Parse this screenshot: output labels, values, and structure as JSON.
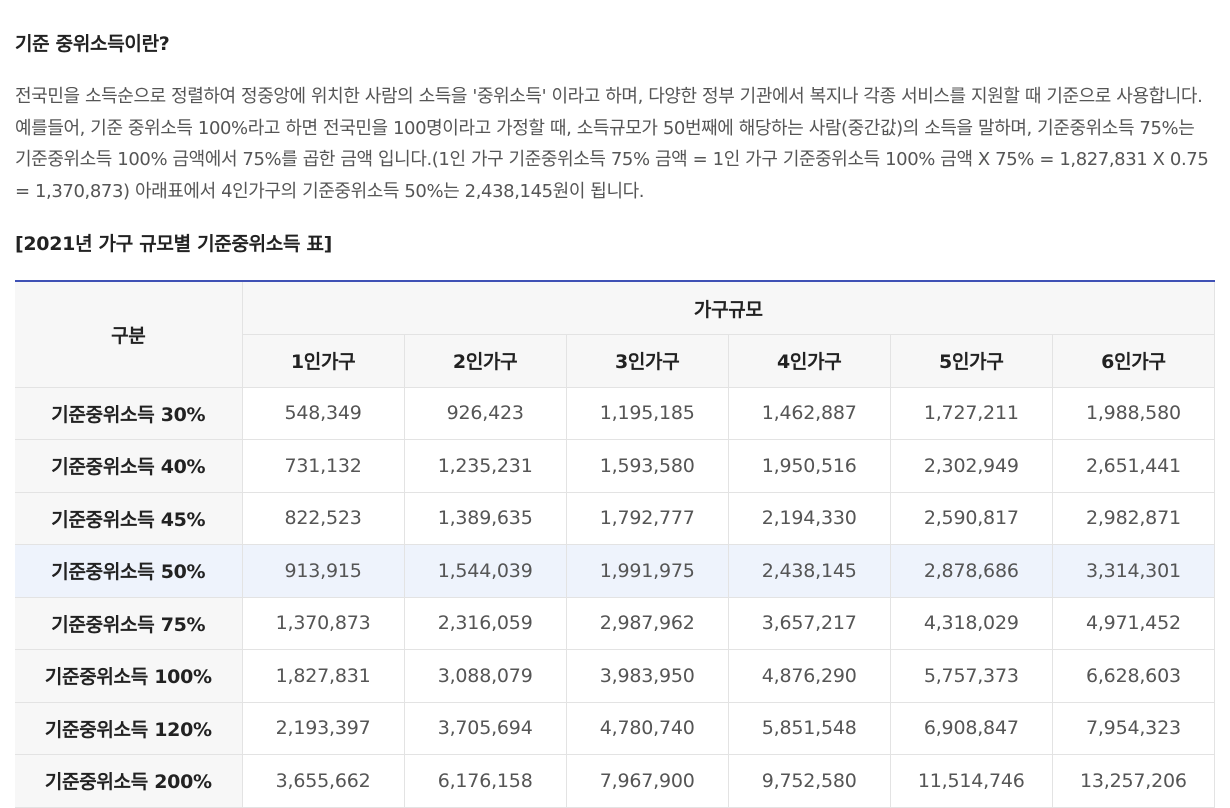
{
  "heading": "기준 중위소득이란?",
  "paragraph": "전국민을 소득순으로 정렬하여 정중앙에 위치한 사람의 소득을 '중위소득' 이라고 하며, 다양한 정부 기관에서 복지나 각종 서비스를 지원할 때 기준으로 사용합니다. 예를들어, 기준 중위소득 100%라고 하면 전국민을 100명이라고 가정할 때, 소득규모가 50번째에 해당하는 사람(중간값)의 소득을 말하며, 기준중위소득 75%는 기준중위소득 100% 금액에서 75%를 곱한 금액 입니다.(1인 가구 기준중위소득 75% 금액 = 1인 가구 기준중위소득 100% 금액 X 75% = 1,827,831 X 0.75 = 1,370,873) 아래표에서 4인가구의 기준중위소득 50%는 2,438,145원이 됩니다.",
  "table_title": "[2021년 가구 규모별 기준중위소득 표]",
  "table": {
    "corner_label": "구분",
    "group_label": "가구규모",
    "columns": [
      "1인가구",
      "2인가구",
      "3인가구",
      "4인가구",
      "5인가구",
      "6인가구"
    ],
    "highlight_color": "#eef3fc",
    "accent_color": "#3f51b5",
    "rows": [
      {
        "label": "기준중위소득 30%",
        "values": [
          "548,349",
          "926,423",
          "1,195,185",
          "1,462,887",
          "1,727,211",
          "1,988,580"
        ]
      },
      {
        "label": "기준중위소득 40%",
        "values": [
          "731,132",
          "1,235,231",
          "1,593,580",
          "1,950,516",
          "2,302,949",
          "2,651,441"
        ]
      },
      {
        "label": "기준중위소득 45%",
        "values": [
          "822,523",
          "1,389,635",
          "1,792,777",
          "2,194,330",
          "2,590,817",
          "2,982,871"
        ]
      },
      {
        "label": "기준중위소득 50%",
        "values": [
          "913,915",
          "1,544,039",
          "1,991,975",
          "2,438,145",
          "2,878,686",
          "3,314,301"
        ],
        "highlighted": true
      },
      {
        "label": "기준중위소득 75%",
        "values": [
          "1,370,873",
          "2,316,059",
          "2,987,962",
          "3,657,217",
          "4,318,029",
          "4,971,452"
        ]
      },
      {
        "label": "기준중위소득 100%",
        "values": [
          "1,827,831",
          "3,088,079",
          "3,983,950",
          "4,876,290",
          "5,757,373",
          "6,628,603"
        ]
      },
      {
        "label": "기준중위소득 120%",
        "values": [
          "2,193,397",
          "3,705,694",
          "4,780,740",
          "5,851,548",
          "6,908,847",
          "7,954,323"
        ]
      },
      {
        "label": "기준중위소득 200%",
        "values": [
          "3,655,662",
          "6,176,158",
          "7,967,900",
          "9,752,580",
          "11,514,746",
          "13,257,206"
        ]
      }
    ]
  }
}
